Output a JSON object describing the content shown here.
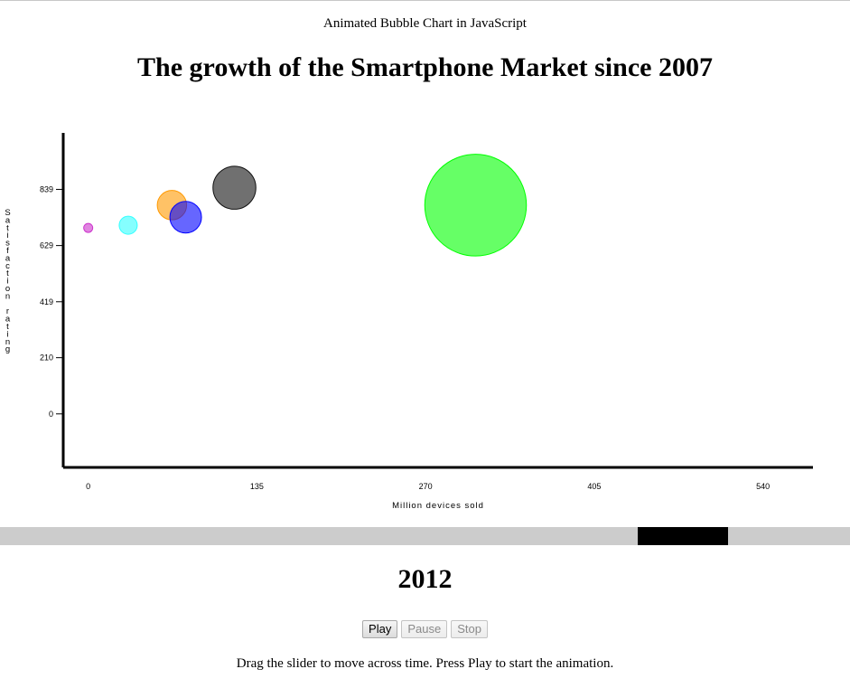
{
  "page": {
    "subtitle": "Animated Bubble Chart in JavaScript",
    "title": "The growth of the Smartphone Market since 2007"
  },
  "chart_data": {
    "type": "scatter",
    "subtype": "bubble",
    "title": "",
    "xlabel": "Million devices sold",
    "ylabel": "Satisfaction rating",
    "xlim": [
      -20,
      580
    ],
    "ylim": [
      -200,
      1050
    ],
    "x_ticks": [
      0,
      135,
      270,
      405,
      540
    ],
    "y_ticks": [
      0,
      210,
      419,
      629,
      839
    ],
    "grid": false,
    "legend": "none",
    "current_year": "2012",
    "points": [
      {
        "x": 0,
        "y": 695,
        "size": 4,
        "color": "#cc33cc"
      },
      {
        "x": 32,
        "y": 705,
        "size": 8,
        "color": "#33ffff"
      },
      {
        "x": 67,
        "y": 780,
        "size": 13,
        "color": "#ff9900"
      },
      {
        "x": 78,
        "y": 735,
        "size": 14,
        "color": "#0000ff"
      },
      {
        "x": 117,
        "y": 845,
        "size": 19,
        "color": "#111111"
      },
      {
        "x": 310,
        "y": 780,
        "size": 45,
        "color": "#00ff00"
      }
    ]
  },
  "slider": {
    "position_fraction": 0.84,
    "track_color": "#cccccc",
    "thumb_color": "#000000"
  },
  "controls": {
    "play_label": "Play",
    "pause_label": "Pause",
    "stop_label": "Stop"
  },
  "help_text": "Drag the slider to move across time. Press Play to start the animation."
}
